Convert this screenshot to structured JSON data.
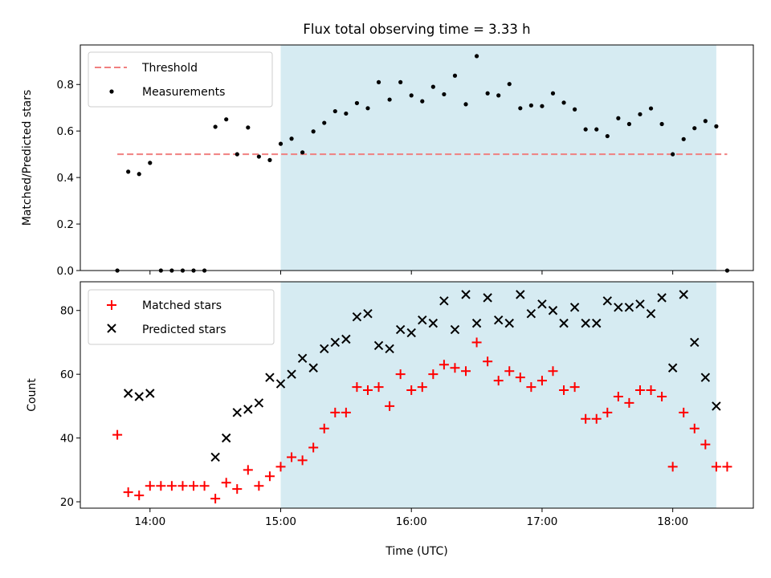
{
  "title": "Flux total observing time = 3.33 h",
  "colors": {
    "shade": "#add8e6",
    "threshold": "#f08080",
    "measurement": "#000000",
    "matched": "#ff0000",
    "predicted": "#000000"
  },
  "chart_data": [
    {
      "type": "scatter",
      "panel": "top",
      "ylabel": "Matched/Predicted stars",
      "xlabel": "",
      "xlim": [
        "13:28",
        "18:37"
      ],
      "ylim": [
        0,
        0.97
      ],
      "yticks": [
        0.0,
        0.2,
        0.4,
        0.6,
        0.8
      ],
      "yticklabels": [
        "0.0",
        "0.2",
        "0.4",
        "0.6",
        "0.8"
      ],
      "shaded_span": [
        "15:00",
        "18:20"
      ],
      "threshold": {
        "name": "Threshold",
        "value": 0.5,
        "x_range": [
          "13:45",
          "18:25"
        ]
      },
      "legend_position": "upper left",
      "series": [
        {
          "name": "Measurements",
          "points": [
            [
              "13:45",
              0.0
            ],
            [
              "13:50",
              0.425
            ],
            [
              "13:55",
              0.415
            ],
            [
              "14:00",
              0.463
            ],
            [
              "14:05",
              0.0
            ],
            [
              "14:10",
              0.0
            ],
            [
              "14:15",
              0.0
            ],
            [
              "14:20",
              0.0
            ],
            [
              "14:25",
              0.0
            ],
            [
              "14:30",
              0.618
            ],
            [
              "14:35",
              0.65
            ],
            [
              "14:40",
              0.5
            ],
            [
              "14:45",
              0.615
            ],
            [
              "14:50",
              0.49
            ],
            [
              "14:55",
              0.475
            ],
            [
              "15:00",
              0.545
            ],
            [
              "15:05",
              0.567
            ],
            [
              "15:10",
              0.508
            ],
            [
              "15:15",
              0.598
            ],
            [
              "15:20",
              0.635
            ],
            [
              "15:25",
              0.685
            ],
            [
              "15:30",
              0.675
            ],
            [
              "15:35",
              0.72
            ],
            [
              "15:40",
              0.698
            ],
            [
              "15:45",
              0.81
            ],
            [
              "15:50",
              0.735
            ],
            [
              "15:55",
              0.81
            ],
            [
              "16:00",
              0.753
            ],
            [
              "16:05",
              0.728
            ],
            [
              "16:10",
              0.79
            ],
            [
              "16:15",
              0.758
            ],
            [
              "16:20",
              0.838
            ],
            [
              "16:25",
              0.715
            ],
            [
              "16:30",
              0.922
            ],
            [
              "16:35",
              0.762
            ],
            [
              "16:40",
              0.753
            ],
            [
              "16:45",
              0.802
            ],
            [
              "16:50",
              0.698
            ],
            [
              "16:55",
              0.71
            ],
            [
              "17:00",
              0.707
            ],
            [
              "17:05",
              0.762
            ],
            [
              "17:10",
              0.722
            ],
            [
              "17:15",
              0.693
            ],
            [
              "17:20",
              0.607
            ],
            [
              "17:25",
              0.607
            ],
            [
              "17:30",
              0.578
            ],
            [
              "17:35",
              0.655
            ],
            [
              "17:40",
              0.63
            ],
            [
              "17:45",
              0.672
            ],
            [
              "17:50",
              0.697
            ],
            [
              "17:55",
              0.63
            ],
            [
              "18:00",
              0.5
            ],
            [
              "18:05",
              0.565
            ],
            [
              "18:10",
              0.612
            ],
            [
              "18:15",
              0.643
            ],
            [
              "18:20",
              0.62
            ],
            [
              "18:25",
              0.0
            ]
          ]
        }
      ]
    },
    {
      "type": "scatter",
      "panel": "bottom",
      "ylabel": "Count",
      "xlabel": "Time (UTC)",
      "xlim": [
        "13:28",
        "18:37"
      ],
      "ylim": [
        18,
        89
      ],
      "yticks": [
        20,
        40,
        60,
        80
      ],
      "yticklabels": [
        "20",
        "40",
        "60",
        "80"
      ],
      "xticks": [
        "14:00",
        "15:00",
        "16:00",
        "17:00",
        "18:00"
      ],
      "xticklabels": [
        "14:00",
        "15:00",
        "16:00",
        "17:00",
        "18:00"
      ],
      "shaded_span": [
        "15:00",
        "18:20"
      ],
      "legend_position": "upper left",
      "series": [
        {
          "name": "Matched stars",
          "marker": "plus",
          "points": [
            [
              "13:45",
              41
            ],
            [
              "13:50",
              23
            ],
            [
              "13:55",
              22
            ],
            [
              "14:00",
              25
            ],
            [
              "14:05",
              25
            ],
            [
              "14:10",
              25
            ],
            [
              "14:15",
              25
            ],
            [
              "14:20",
              25
            ],
            [
              "14:25",
              25
            ],
            [
              "14:30",
              21
            ],
            [
              "14:35",
              26
            ],
            [
              "14:40",
              24
            ],
            [
              "14:45",
              30
            ],
            [
              "14:50",
              25
            ],
            [
              "14:55",
              28
            ],
            [
              "15:00",
              31
            ],
            [
              "15:05",
              34
            ],
            [
              "15:10",
              33
            ],
            [
              "15:15",
              37
            ],
            [
              "15:20",
              43
            ],
            [
              "15:25",
              48
            ],
            [
              "15:30",
              48
            ],
            [
              "15:35",
              56
            ],
            [
              "15:40",
              55
            ],
            [
              "15:45",
              56
            ],
            [
              "15:50",
              50
            ],
            [
              "15:55",
              60
            ],
            [
              "16:00",
              55
            ],
            [
              "16:05",
              56
            ],
            [
              "16:10",
              60
            ],
            [
              "16:15",
              63
            ],
            [
              "16:20",
              62
            ],
            [
              "16:25",
              61
            ],
            [
              "16:30",
              70
            ],
            [
              "16:35",
              64
            ],
            [
              "16:40",
              58
            ],
            [
              "16:45",
              61
            ],
            [
              "16:50",
              59
            ],
            [
              "16:55",
              56
            ],
            [
              "17:00",
              58
            ],
            [
              "17:05",
              61
            ],
            [
              "17:10",
              55
            ],
            [
              "17:15",
              56
            ],
            [
              "17:20",
              46
            ],
            [
              "17:25",
              46
            ],
            [
              "17:30",
              48
            ],
            [
              "17:35",
              53
            ],
            [
              "17:40",
              51
            ],
            [
              "17:45",
              55
            ],
            [
              "17:50",
              55
            ],
            [
              "17:55",
              53
            ],
            [
              "18:00",
              31
            ],
            [
              "18:05",
              48
            ],
            [
              "18:10",
              43
            ],
            [
              "18:15",
              38
            ],
            [
              "18:20",
              31
            ],
            [
              "18:25",
              31
            ]
          ]
        },
        {
          "name": "Predicted stars",
          "marker": "x",
          "points": [
            [
              "13:50",
              54
            ],
            [
              "13:55",
              53
            ],
            [
              "14:00",
              54
            ],
            [
              "14:30",
              34
            ],
            [
              "14:35",
              40
            ],
            [
              "14:40",
              48
            ],
            [
              "14:45",
              49
            ],
            [
              "14:50",
              51
            ],
            [
              "14:55",
              59
            ],
            [
              "15:00",
              57
            ],
            [
              "15:05",
              60
            ],
            [
              "15:10",
              65
            ],
            [
              "15:15",
              62
            ],
            [
              "15:20",
              68
            ],
            [
              "15:25",
              70
            ],
            [
              "15:30",
              71
            ],
            [
              "15:35",
              78
            ],
            [
              "15:40",
              79
            ],
            [
              "15:45",
              69
            ],
            [
              "15:50",
              68
            ],
            [
              "15:55",
              74
            ],
            [
              "16:00",
              73
            ],
            [
              "16:05",
              77
            ],
            [
              "16:10",
              76
            ],
            [
              "16:15",
              83
            ],
            [
              "16:20",
              74
            ],
            [
              "16:25",
              85
            ],
            [
              "16:30",
              76
            ],
            [
              "16:35",
              84
            ],
            [
              "16:40",
              77
            ],
            [
              "16:45",
              76
            ],
            [
              "16:50",
              85
            ],
            [
              "16:55",
              79
            ],
            [
              "17:00",
              82
            ],
            [
              "17:05",
              80
            ],
            [
              "17:10",
              76
            ],
            [
              "17:15",
              81
            ],
            [
              "17:20",
              76
            ],
            [
              "17:25",
              76
            ],
            [
              "17:30",
              83
            ],
            [
              "17:35",
              81
            ],
            [
              "17:40",
              81
            ],
            [
              "17:45",
              82
            ],
            [
              "17:50",
              79
            ],
            [
              "17:55",
              84
            ],
            [
              "18:00",
              62
            ],
            [
              "18:05",
              85
            ],
            [
              "18:10",
              70
            ],
            [
              "18:15",
              59
            ],
            [
              "18:20",
              50
            ]
          ]
        }
      ]
    }
  ]
}
